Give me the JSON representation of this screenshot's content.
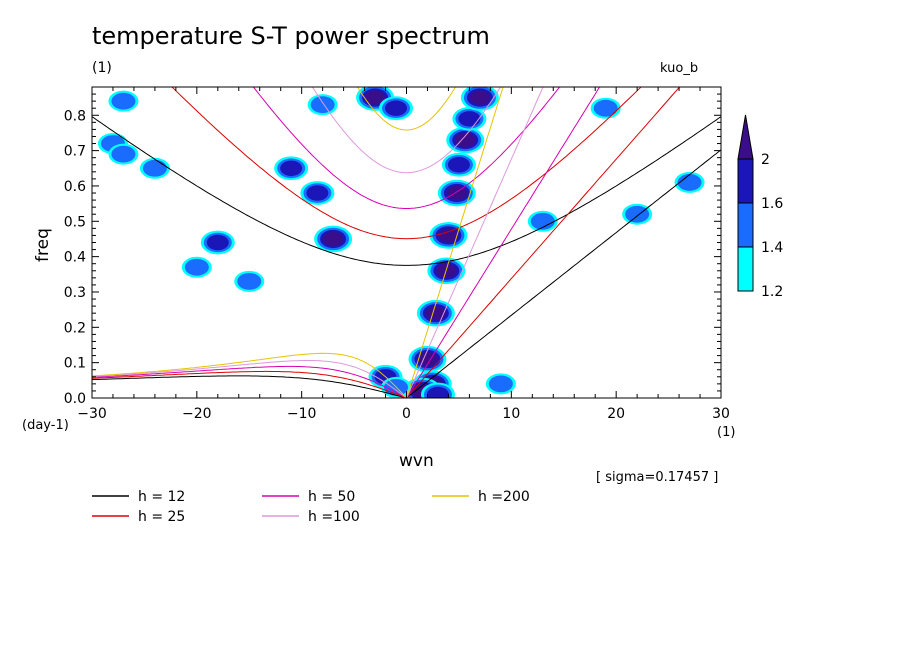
{
  "colors": {
    "cyan": "#00ffff",
    "blue": "#1a6cff",
    "darkblue": "#1a16b8",
    "purple": "#3a0e8a",
    "h12": "#000000",
    "h25": "#dd0000",
    "h50": "#d800b4",
    "h100": "#dd99dd",
    "h200": "#e6c400"
  },
  "chart_data": {
    "type": "contour",
    "title": "temperature S-T power spectrum",
    "subtitle": "(1)",
    "corner_label": "kuo_b",
    "xlabel": "wvn",
    "ylabel": "freq",
    "x_unit": "(1)",
    "y_unit": "(day-1)",
    "xlim": [
      -30,
      30
    ],
    "ylim": [
      0,
      0.88
    ],
    "x_ticks": [
      -30,
      -20,
      -10,
      0,
      10,
      20,
      30
    ],
    "x_tick_labels": [
      "−30",
      "−20",
      "−10",
      "0",
      "10",
      "20",
      "30"
    ],
    "y_ticks": [
      0.0,
      0.1,
      0.2,
      0.3,
      0.4,
      0.5,
      0.6,
      0.7,
      0.8
    ],
    "y_tick_labels": [
      "0.0",
      "0.1",
      "0.2",
      "0.3",
      "0.4",
      "0.5",
      "0.6",
      "0.7",
      "0.8"
    ],
    "sigma_label": "[ sigma=0.17457 ]",
    "colorbar": {
      "levels": [
        1.2,
        1.4,
        1.6,
        2
      ],
      "level_labels": [
        "1.2",
        "1.4",
        "1.6",
        "2"
      ],
      "colors": [
        "#00ffff",
        "#1a6cff",
        "#1a16b8",
        "#3a0e8a"
      ]
    },
    "dispersion_curves": [
      {
        "name": "h = 12",
        "h": 12,
        "color": "#000000"
      },
      {
        "name": "h = 25",
        "h": 25,
        "color": "#dd0000"
      },
      {
        "name": "h = 50",
        "h": 50,
        "color": "#d800b4"
      },
      {
        "name": "h =100",
        "h": 100,
        "color": "#dd99dd"
      },
      {
        "name": "h =200",
        "h": 200,
        "color": "#e6c400"
      }
    ],
    "legend_order": [
      0,
      2,
      4,
      1,
      3
    ],
    "blobs": [
      {
        "x": 2.5,
        "y": 0.04,
        "level": 3
      },
      {
        "x": 2.0,
        "y": 0.11,
        "level": 3
      },
      {
        "x": 1.5,
        "y": 0.02,
        "level": 3
      },
      {
        "x": 3.0,
        "y": 0.01,
        "level": 2
      },
      {
        "x": 2.8,
        "y": 0.24,
        "level": 3
      },
      {
        "x": 3.8,
        "y": 0.36,
        "level": 3
      },
      {
        "x": 4.0,
        "y": 0.46,
        "level": 3
      },
      {
        "x": 4.8,
        "y": 0.58,
        "level": 3
      },
      {
        "x": 5.0,
        "y": 0.66,
        "level": 2
      },
      {
        "x": 5.6,
        "y": 0.73,
        "level": 3
      },
      {
        "x": 6.0,
        "y": 0.79,
        "level": 2
      },
      {
        "x": 7.0,
        "y": 0.85,
        "level": 3
      },
      {
        "x": -3.0,
        "y": 0.85,
        "level": 3
      },
      {
        "x": -1.0,
        "y": 0.82,
        "level": 2
      },
      {
        "x": -2.0,
        "y": 0.06,
        "level": 2
      },
      {
        "x": -1.0,
        "y": 0.03,
        "level": 1
      },
      {
        "x": -7.0,
        "y": 0.45,
        "level": 3
      },
      {
        "x": -8.5,
        "y": 0.58,
        "level": 2
      },
      {
        "x": -18.0,
        "y": 0.44,
        "level": 2
      },
      {
        "x": -11.0,
        "y": 0.65,
        "level": 2
      },
      {
        "x": -24.0,
        "y": 0.65,
        "level": 1
      },
      {
        "x": -28.0,
        "y": 0.72,
        "level": 1
      },
      {
        "x": -27.0,
        "y": 0.69,
        "level": 1
      },
      {
        "x": -15.0,
        "y": 0.33,
        "level": 1
      },
      {
        "x": -27.0,
        "y": 0.84,
        "level": 1
      },
      {
        "x": 9.0,
        "y": 0.04,
        "level": 1
      },
      {
        "x": 27.0,
        "y": 0.61,
        "level": 1
      },
      {
        "x": 19.0,
        "y": 0.82,
        "level": 1
      },
      {
        "x": 22.0,
        "y": 0.52,
        "level": 1
      },
      {
        "x": 13.0,
        "y": 0.5,
        "level": 1
      },
      {
        "x": -20.0,
        "y": 0.37,
        "level": 1
      },
      {
        "x": -8.0,
        "y": 0.83,
        "level": 1
      }
    ]
  }
}
